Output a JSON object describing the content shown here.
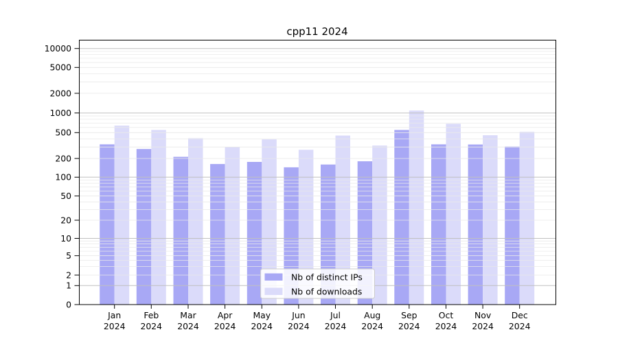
{
  "chart_data": {
    "type": "bar",
    "title": "cpp11 2024",
    "months": [
      "Jan",
      "Feb",
      "Mar",
      "Apr",
      "May",
      "Jun",
      "Jul",
      "Aug",
      "Sep",
      "Oct",
      "Nov",
      "Dec"
    ],
    "year": "2024",
    "series": [
      {
        "name": "Nb of distinct IPs",
        "color": "#a8a8f5",
        "values": [
          330,
          280,
          212,
          163,
          176,
          144,
          160,
          180,
          550,
          330,
          328,
          305
        ]
      },
      {
        "name": "Nb of downloads",
        "color": "#dbdbfa",
        "values": [
          640,
          550,
          410,
          300,
          393,
          272,
          450,
          316,
          1090,
          683,
          456,
          515
        ]
      }
    ],
    "yscale": "symlog",
    "yticks": [
      0,
      1,
      2,
      5,
      10,
      20,
      50,
      100,
      200,
      500,
      1000,
      2000,
      5000,
      10000
    ],
    "ylim": [
      0,
      13500
    ],
    "grid": true,
    "legend": {
      "position": "lower center"
    },
    "colors": {
      "grid_major": "#c0c0c0",
      "grid_minor": "#e9e9e9",
      "axis": "#000000",
      "legend_border": "#cccccc",
      "legend_bg": "#ffffff"
    }
  }
}
